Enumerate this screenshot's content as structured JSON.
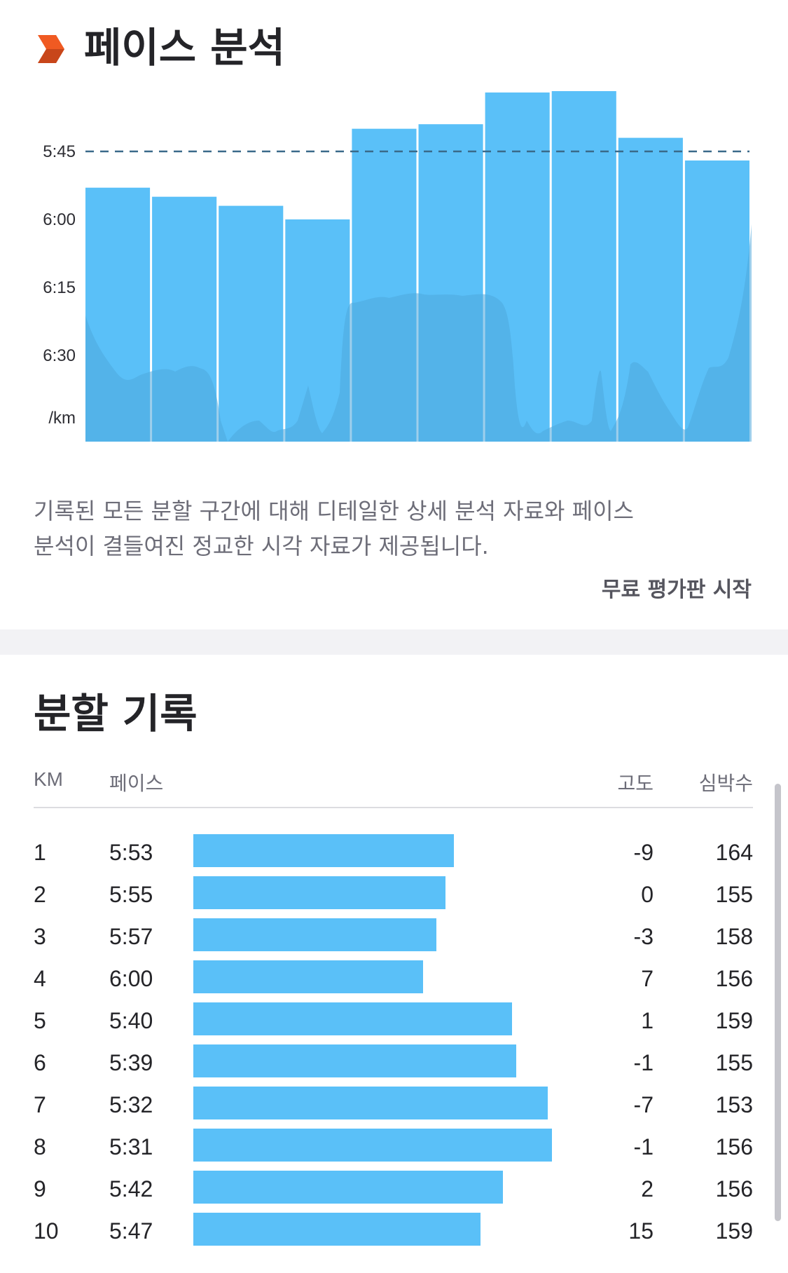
{
  "pace_analysis": {
    "title": "페이스 분석",
    "icon": "orange-chevron-icon",
    "description_line1": "기록된 모든 분할 구간에 대해 디테일한 상세 분석 자료와 페이스",
    "description_line2": "분석이 결들여진 정교한 시각 자료가 제공됩니다.",
    "cta_label": "무료 평가판 시작"
  },
  "chart_data": {
    "type": "bar",
    "title": "",
    "xlabel": "",
    "ylabel": "/km",
    "y_ticks": [
      "5:45",
      "6:00",
      "6:15",
      "6:30"
    ],
    "y_unit_label": "/km",
    "reference_line": "5:45",
    "categories": [
      "1",
      "2",
      "3",
      "4",
      "5",
      "6",
      "7",
      "8",
      "9",
      "10"
    ],
    "values_seconds_per_km": [
      353,
      355,
      357,
      360,
      340,
      339,
      332,
      331,
      342,
      347
    ],
    "ylim_seconds_per_km": [
      327,
      400
    ],
    "bar_color": "#5ac0f8",
    "elevation_shade_color": "#4ea8dc"
  },
  "splits": {
    "title": "분할 기록",
    "headers": {
      "km": "KM",
      "pace": "페이스",
      "elevation": "고도",
      "heart_rate": "심박수"
    },
    "rows": [
      {
        "km": "1",
        "pace": "5:53",
        "elevation": "-9",
        "heart_rate": "164",
        "seconds": 353
      },
      {
        "km": "2",
        "pace": "5:55",
        "elevation": "0",
        "heart_rate": "155",
        "seconds": 355
      },
      {
        "km": "3",
        "pace": "5:57",
        "elevation": "-3",
        "heart_rate": "158",
        "seconds": 357
      },
      {
        "km": "4",
        "pace": "6:00",
        "elevation": "7",
        "heart_rate": "156",
        "seconds": 360
      },
      {
        "km": "5",
        "pace": "5:40",
        "elevation": "1",
        "heart_rate": "159",
        "seconds": 340
      },
      {
        "km": "6",
        "pace": "5:39",
        "elevation": "-1",
        "heart_rate": "155",
        "seconds": 339
      },
      {
        "km": "7",
        "pace": "5:32",
        "elevation": "-7",
        "heart_rate": "153",
        "seconds": 332
      },
      {
        "km": "8",
        "pace": "5:31",
        "elevation": "-1",
        "heart_rate": "156",
        "seconds": 331
      },
      {
        "km": "9",
        "pace": "5:42",
        "elevation": "2",
        "heart_rate": "156",
        "seconds": 342
      },
      {
        "km": "10",
        "pace": "5:47",
        "elevation": "15",
        "heart_rate": "159",
        "seconds": 347
      }
    ]
  }
}
